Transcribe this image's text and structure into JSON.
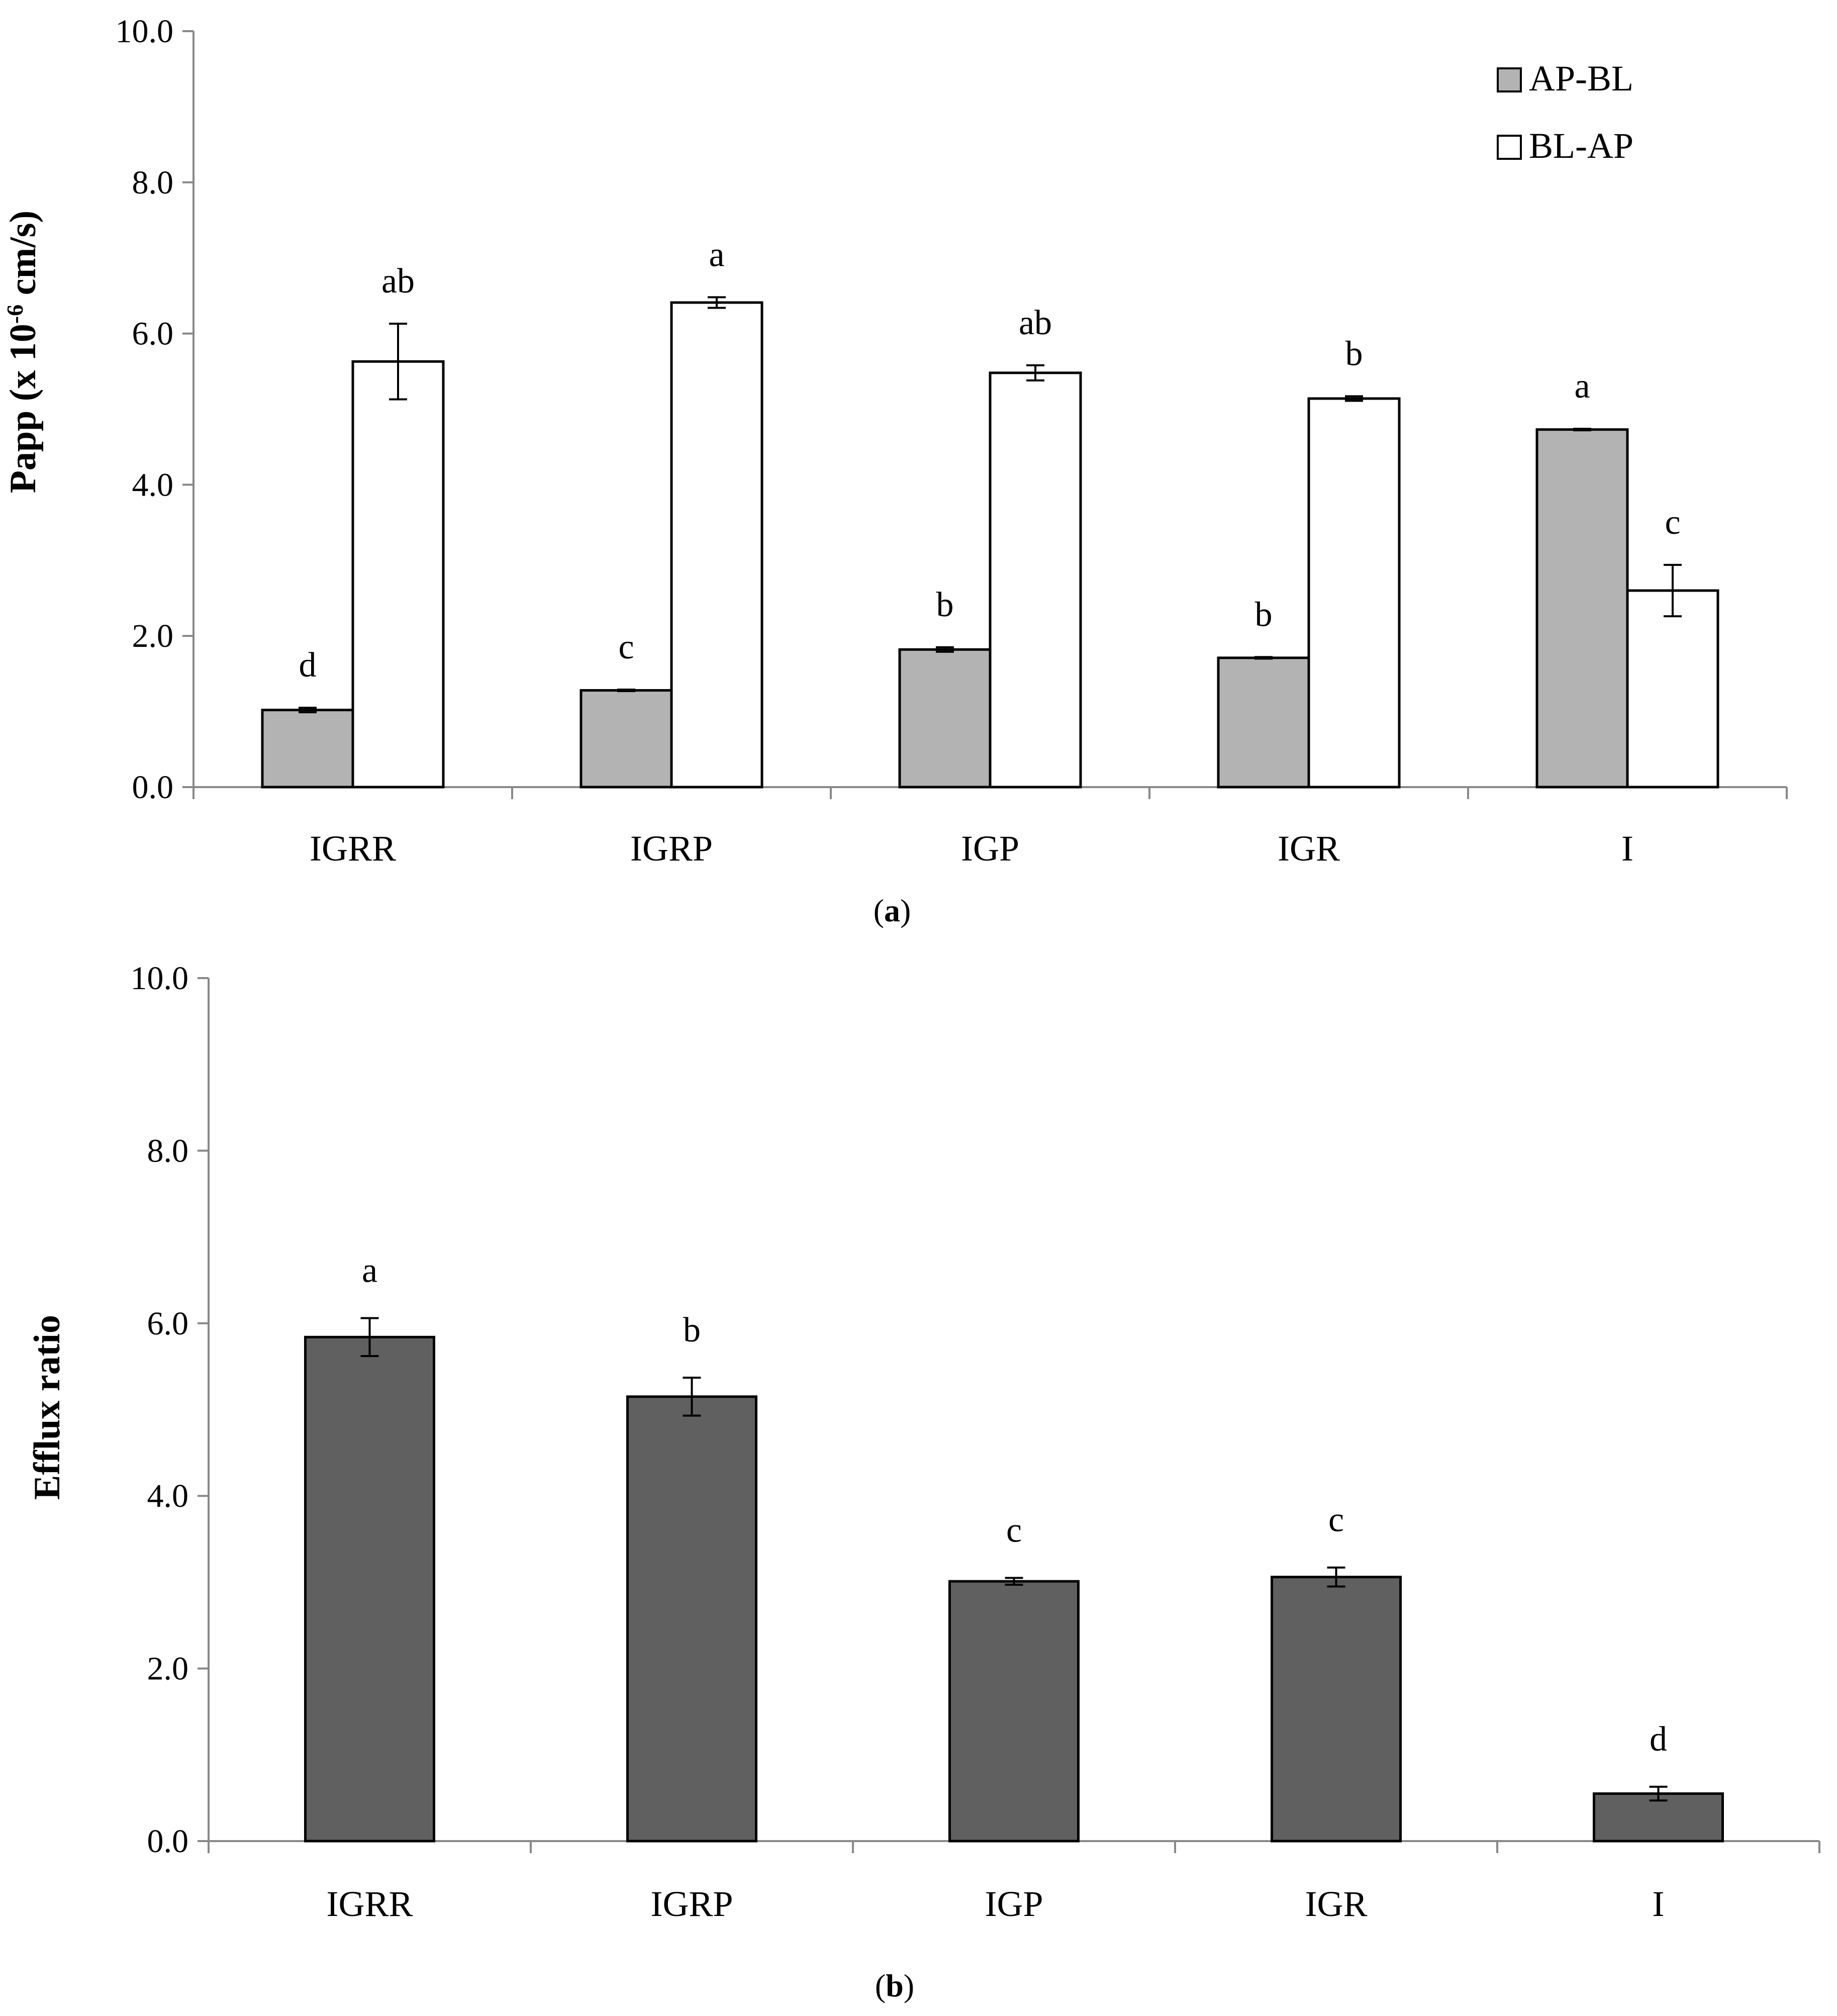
{
  "chart_data": [
    {
      "type": "bar",
      "panel_label": "(a)",
      "panel_letter": "a",
      "categories": [
        "IGRR",
        "IGRP",
        "IGP",
        "IGR",
        "I"
      ],
      "ylabel": "Papp (x 10-6 cm/s)",
      "ylabel_parts": {
        "main": "Papp (x 10",
        "sup": "-6",
        "tail": " cm/s)"
      },
      "ylim": [
        0,
        10
      ],
      "yticks": [
        "0.0",
        "2.0",
        "4.0",
        "6.0",
        "8.0",
        "10.0"
      ],
      "grid": false,
      "legend_position": "top-right",
      "colors": {
        "AP-BL": "#b3b3b3",
        "BL-AP": "#ffffff",
        "stroke": "#000000"
      },
      "series": [
        {
          "name": "AP-BL",
          "values": [
            1.02,
            1.28,
            1.82,
            1.71,
            4.73
          ],
          "errors": [
            0.03,
            0.01,
            0.03,
            0.01,
            0.01
          ],
          "letters": [
            "d",
            "c",
            "b",
            "b",
            "a"
          ]
        },
        {
          "name": "BL-AP",
          "values": [
            5.63,
            6.41,
            5.48,
            5.14,
            2.6
          ],
          "errors": [
            0.5,
            0.07,
            0.1,
            0.03,
            0.34
          ],
          "letters": [
            "ab",
            "a",
            "ab",
            "b",
            "c"
          ]
        }
      ]
    },
    {
      "type": "bar",
      "panel_label": "(b)",
      "panel_letter": "b",
      "categories": [
        "IGRR",
        "IGRP",
        "IGP",
        "IGR",
        "I"
      ],
      "ylabel": "Efflux ratio",
      "ylim": [
        0,
        10
      ],
      "yticks": [
        "0.0",
        "2.0",
        "4.0",
        "6.0",
        "8.0",
        "10.0"
      ],
      "grid": false,
      "colors": {
        "bar": "#606060",
        "stroke": "#000000"
      },
      "series": [
        {
          "name": "Efflux ratio",
          "values": [
            5.84,
            5.15,
            3.01,
            3.06,
            0.55
          ],
          "errors": [
            0.22,
            0.22,
            0.04,
            0.11,
            0.08
          ],
          "letters": [
            "a",
            "b",
            "c",
            "c",
            "d"
          ]
        }
      ]
    }
  ]
}
